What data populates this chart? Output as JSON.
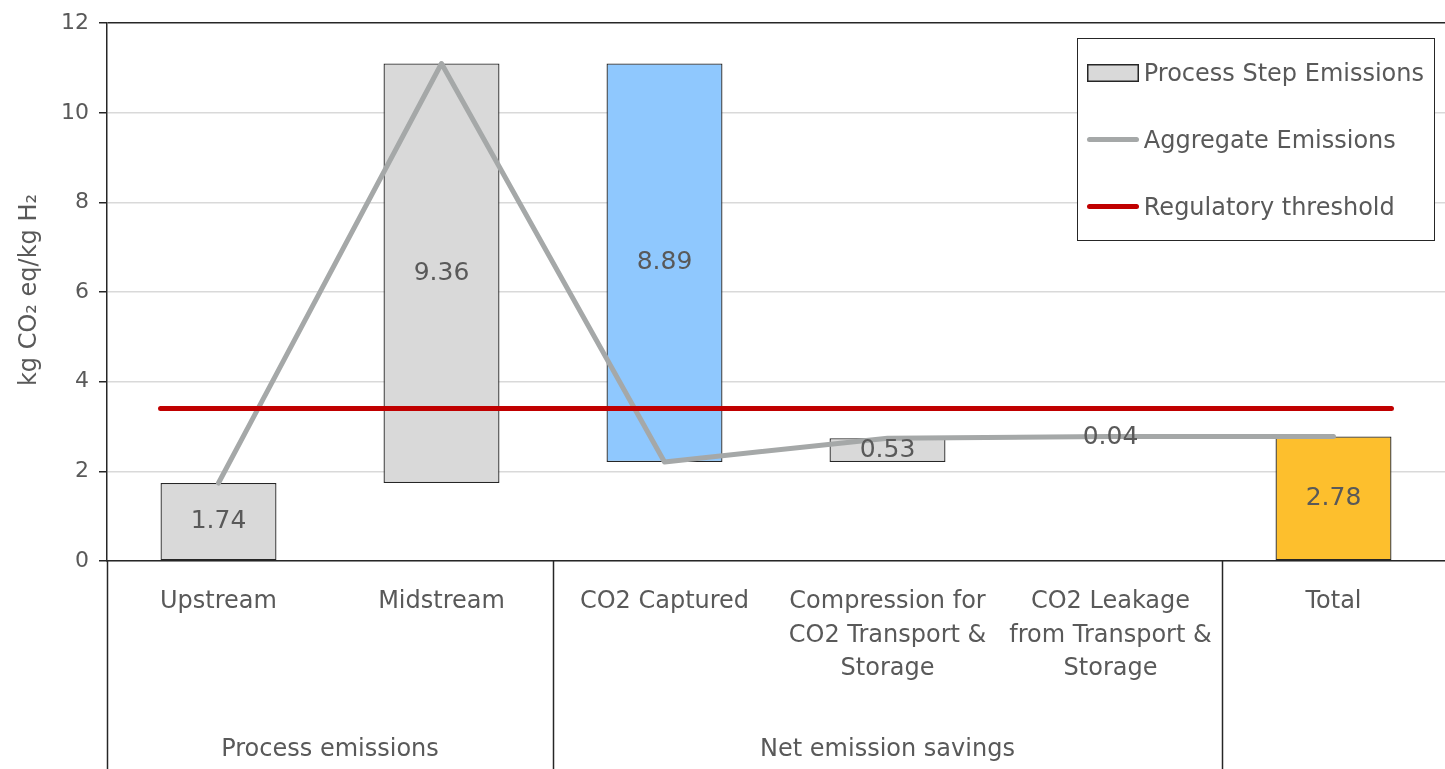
{
  "chart_data": {
    "type": "bar",
    "categories": [
      "Upstream",
      "Midstream",
      "CO2 Captured",
      "Compression for CO2 Transport & Storage",
      "CO2 Leakage from Transport & Storage",
      "Total"
    ],
    "ylabel": "kg CO₂ eq/kg H₂",
    "series": [
      {
        "name": "Process Step Emissions",
        "color": "#d9d9d9",
        "colors": [
          "#d9d9d9",
          "#d9d9d9",
          "#8fc8fe",
          "#d9d9d9",
          "#d9d9d9",
          "#fdbf2d"
        ],
        "base": [
          0,
          1.74,
          2.21,
          2.21,
          2.74,
          0
        ],
        "values": [
          1.74,
          9.36,
          8.89,
          0.53,
          0.04,
          2.78
        ],
        "value_labels": [
          "1.74",
          "9.36",
          "8.89",
          "0.53",
          "0.04",
          "2.78"
        ]
      },
      {
        "name": "Aggregate Emissions",
        "type": "line",
        "color": "#a5a8a8",
        "values": [
          1.74,
          11.1,
          2.21,
          2.74,
          2.78,
          2.78
        ]
      }
    ],
    "ref_lines": [
      {
        "axis": "y",
        "value": 3.4,
        "label": "Regulatory threshold",
        "color": "#c00000"
      }
    ],
    "ylim": [
      0,
      12
    ],
    "yticks": [
      0,
      2,
      4,
      6,
      8,
      10,
      12
    ],
    "grid": "y",
    "legend": "top right",
    "marker": "none",
    "annotations": [
      "Process emissions",
      "Net emission savings"
    ]
  }
}
